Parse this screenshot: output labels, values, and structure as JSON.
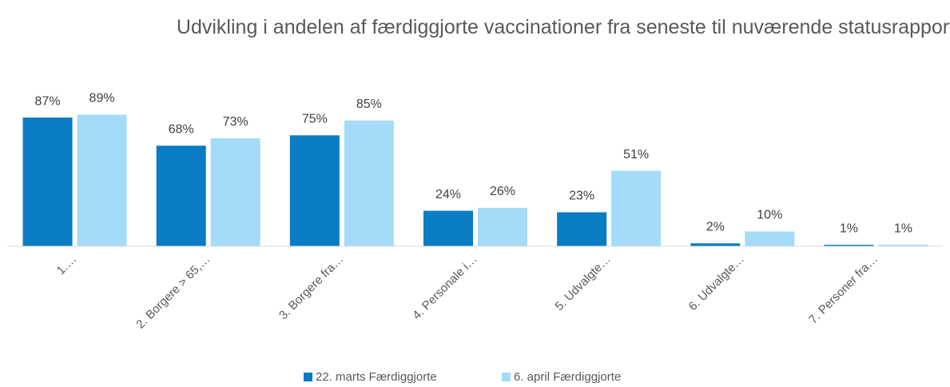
{
  "chart_data": {
    "type": "bar",
    "title": "Udvikling i andelen af færdiggjorte vaccinationer fra seneste til nuværende statusrapport",
    "categories": [
      "1.…",
      "2. Borgere > 65,…",
      "3. Borgere fra…",
      "4. Personale i…",
      "5. Udvalgte…",
      "6. Udvalgte…",
      "7. Personer fra…"
    ],
    "ylim": [
      0,
      100
    ],
    "series": [
      {
        "name": "22. marts Færdiggjorte",
        "color": "#0a7cc4",
        "values": [
          87,
          68,
          75,
          24,
          23,
          2,
          1
        ],
        "value_labels": [
          "87%",
          "68%",
          "75%",
          "24%",
          "23%",
          "2%",
          "1%"
        ]
      },
      {
        "name": "6. april Færdiggjorte",
        "color": "#a4dbf9",
        "values": [
          89,
          73,
          85,
          26,
          51,
          10,
          1
        ],
        "value_labels": [
          "89%",
          "73%",
          "85%",
          "26%",
          "51%",
          "10%",
          "1%"
        ]
      }
    ]
  }
}
